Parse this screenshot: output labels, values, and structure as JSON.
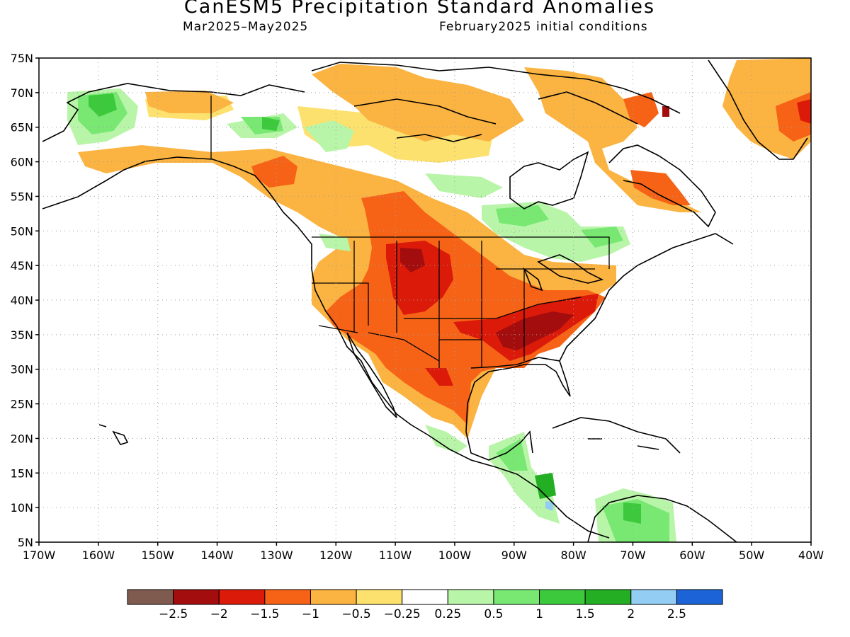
{
  "title": "CanESM5 Precipitation Standard Anomalies",
  "subtitle_left": "Mar2025–May2025",
  "subtitle_right": "February2025 initial conditions",
  "map": {
    "lon_range": [
      -170,
      -40
    ],
    "lat_range": [
      5,
      75
    ],
    "lon_ticks": [
      -170,
      -160,
      -150,
      -140,
      -130,
      -120,
      -110,
      -100,
      -90,
      -80,
      -70,
      -60,
      -50,
      -40
    ],
    "lon_labels": [
      "170W",
      "160W",
      "150W",
      "140W",
      "130W",
      "120W",
      "110W",
      "100W",
      "90W",
      "80W",
      "70W",
      "60W",
      "50W",
      "40W"
    ],
    "lat_ticks": [
      5,
      10,
      15,
      20,
      25,
      30,
      35,
      40,
      45,
      50,
      55,
      60,
      65,
      70,
      75
    ],
    "lat_labels": [
      "5N",
      "10N",
      "15N",
      "20N",
      "25N",
      "30N",
      "35N",
      "40N",
      "45N",
      "50N",
      "55N",
      "60N",
      "65N",
      "70N",
      "75N"
    ],
    "grid": "dotted"
  },
  "colorbar": {
    "colors": [
      "#7f5b4f",
      "#a30d0d",
      "#db1a0a",
      "#f76316",
      "#fbb341",
      "#fce16e",
      "#ffffff",
      "#b8f5a8",
      "#78e873",
      "#3cc93c",
      "#23ae23",
      "#93cdf3",
      "#1b63d6"
    ],
    "labels": [
      "−2.5",
      "−2",
      "−1.5",
      "−1",
      "−0.5",
      "−0.25",
      "0.25",
      "0.5",
      "1",
      "1.5",
      "2",
      "2.5"
    ]
  }
}
